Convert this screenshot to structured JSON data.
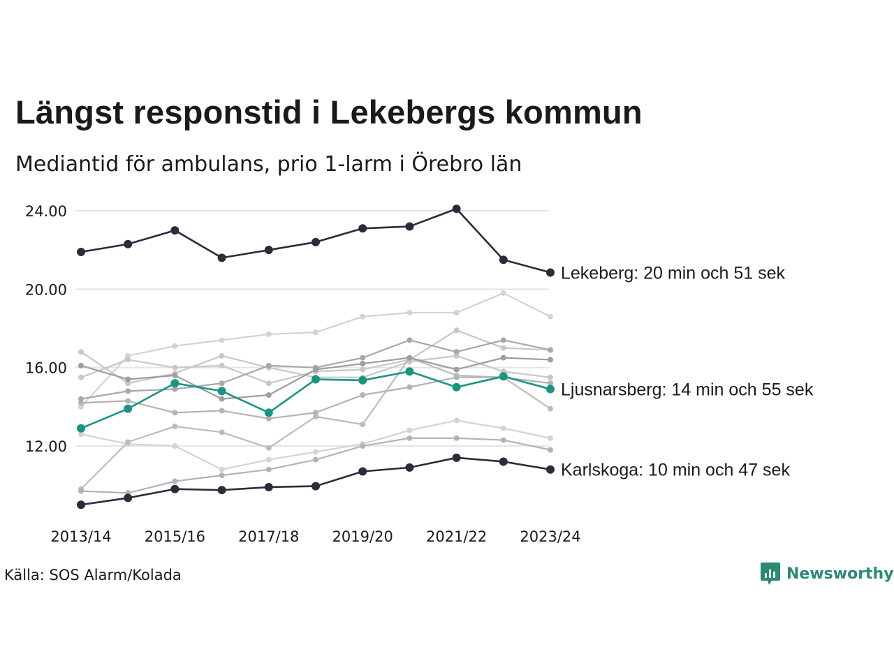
{
  "title": "Längst responstid i Lekebergs kommun",
  "subtitle": "Mediantid för ambulans, prio 1-larm i Örebro län",
  "source": "Källa: SOS Alarm/Kolada",
  "brand": "Newsworthy",
  "colors": {
    "highlight_dark": "#2b2b3b",
    "highlight_teal": "#1a9483",
    "background_series": [
      "#d3d3d3",
      "#c7c7c7",
      "#bcbcbc",
      "#b3b3b3",
      "#a8a8a8",
      "#9e9e9e"
    ],
    "gridline": "#e4e4e4",
    "brand": "#2a8a74"
  },
  "chart_data": {
    "type": "line",
    "x": [
      "2013/14",
      "2014/15",
      "2015/16",
      "2016/17",
      "2017/18",
      "2018/19",
      "2019/20",
      "2020/21",
      "2021/22",
      "2022/23",
      "2023/24"
    ],
    "x_tick_labels": [
      "2013/14",
      "2015/16",
      "2017/18",
      "2019/20",
      "2021/22",
      "2023/24"
    ],
    "y_ticks": [
      "12.00",
      "16.00",
      "20.00",
      "24.00"
    ],
    "ylim": [
      9.3,
      24.2
    ],
    "grid": true,
    "series": [
      {
        "values": [
          14.0,
          16.6,
          17.1,
          17.4,
          17.7,
          17.8,
          18.6,
          18.8,
          18.8,
          19.8,
          18.6
        ],
        "color_index": 0
      },
      {
        "values": [
          12.6,
          12.1,
          12.0,
          10.8,
          11.3,
          11.7,
          12.1,
          12.8,
          13.3,
          12.9,
          12.4
        ],
        "color_index": 0
      },
      {
        "values": [
          15.5,
          16.4,
          16.0,
          16.1,
          15.2,
          15.8,
          15.9,
          16.4,
          17.9,
          17.0,
          16.9
        ],
        "color_index": 1
      },
      {
        "values": [
          16.8,
          15.2,
          15.7,
          16.6,
          16.0,
          15.5,
          15.5,
          16.3,
          16.6,
          15.8,
          15.5
        ],
        "color_index": 1
      },
      {
        "values": [
          9.8,
          12.2,
          13.0,
          12.7,
          11.9,
          13.5,
          13.1,
          16.5,
          15.6,
          15.5,
          13.9
        ],
        "color_index": 2
      },
      {
        "values": [
          9.7,
          9.6,
          10.2,
          10.5,
          10.8,
          11.3,
          12.0,
          12.4,
          12.4,
          12.3,
          11.8
        ],
        "color_index": 3
      },
      {
        "values": [
          14.2,
          14.3,
          13.7,
          13.8,
          13.4,
          13.7,
          14.6,
          15.0,
          15.5,
          15.5,
          15.2
        ],
        "color_index": 3
      },
      {
        "values": [
          14.4,
          14.8,
          14.9,
          15.2,
          16.1,
          16.0,
          16.5,
          17.4,
          16.8,
          17.4,
          16.9
        ],
        "color_index": 4
      },
      {
        "values": [
          16.1,
          15.4,
          15.6,
          14.4,
          14.6,
          15.9,
          16.2,
          16.5,
          15.9,
          16.5,
          16.4
        ],
        "color_index": 5
      },
      {
        "name": "Karlskoga",
        "values": [
          9.0,
          9.35,
          9.8,
          9.75,
          9.9,
          9.95,
          10.7,
          10.9,
          11.4,
          11.2,
          10.8
        ],
        "label": "Karlskoga: 10 min och 47 sek",
        "color": "#2b2b3b"
      },
      {
        "name": "Ljusnarsberg",
        "values": [
          12.9,
          13.9,
          15.2,
          14.8,
          13.7,
          15.4,
          15.35,
          15.8,
          15.0,
          15.55,
          14.9
        ],
        "label": "Ljusnarsberg: 14 min och 55 sek",
        "color": "#1a9483"
      },
      {
        "name": "Lekeberg",
        "values": [
          21.9,
          22.3,
          23.0,
          21.6,
          22.0,
          22.4,
          23.1,
          23.2,
          24.1,
          21.5,
          20.85
        ],
        "label": "Lekeberg: 20 min och 51 sek",
        "color": "#2b2b3b"
      }
    ]
  }
}
